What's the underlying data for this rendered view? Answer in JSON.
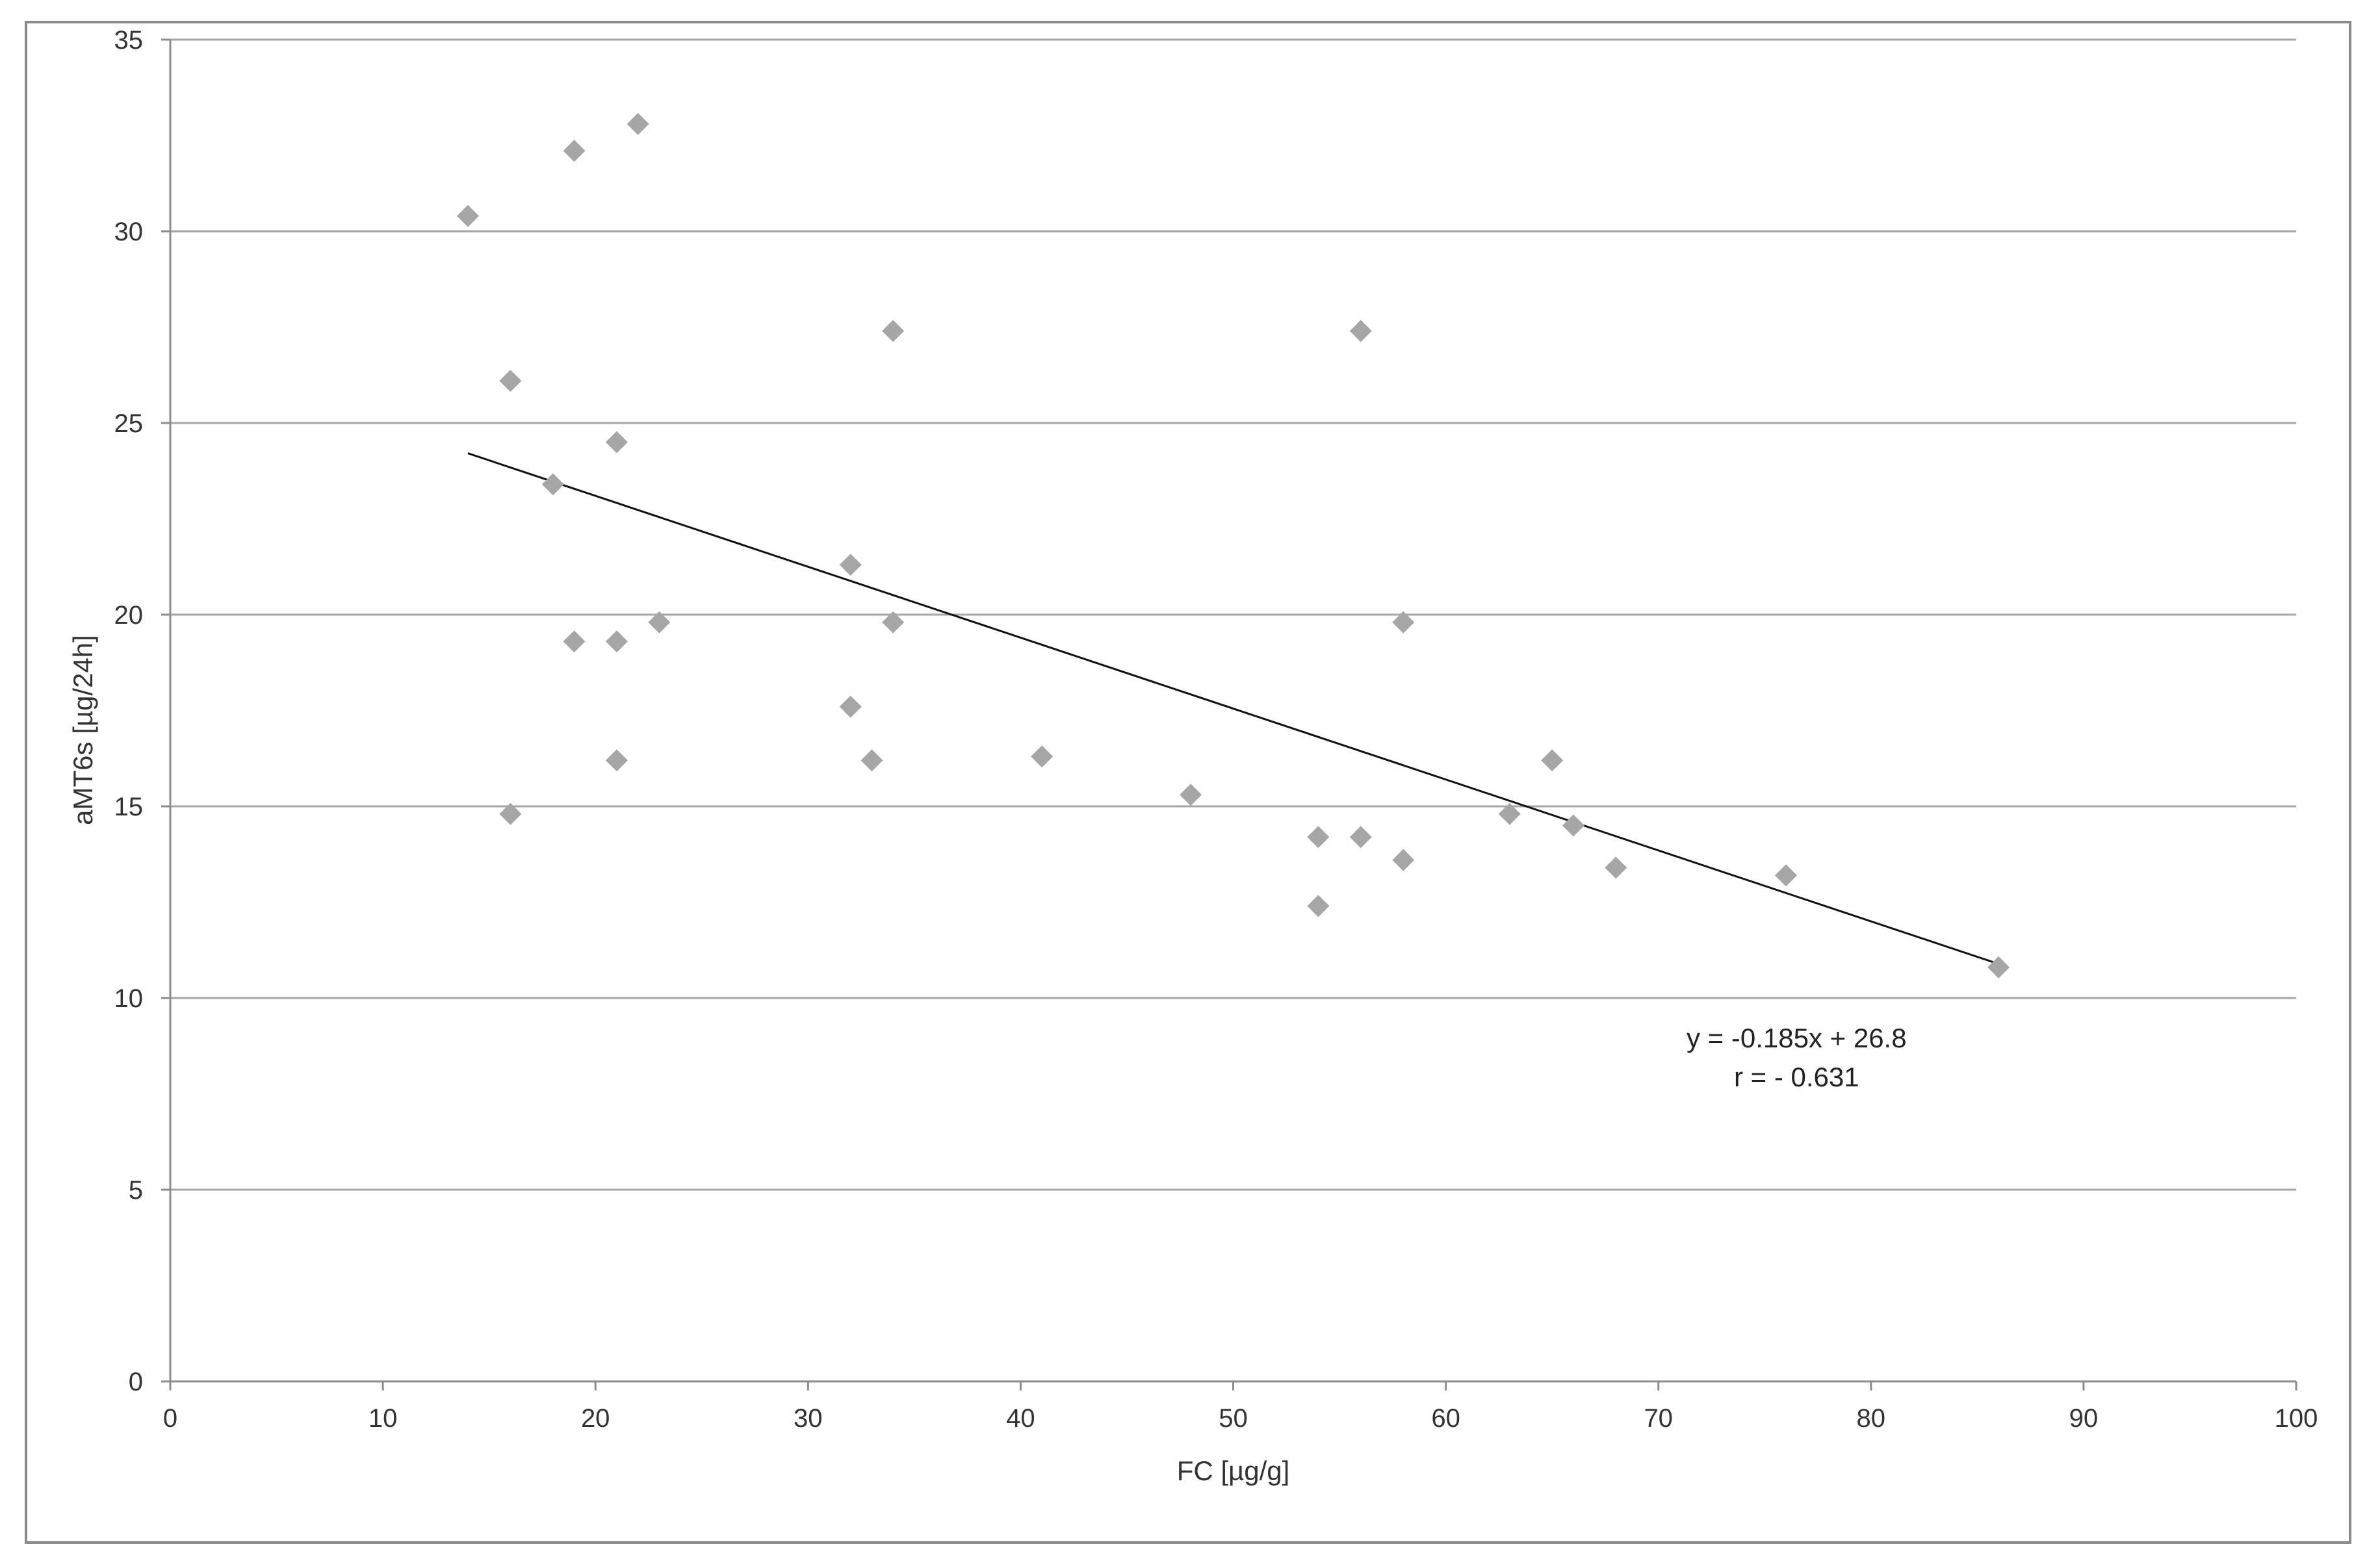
{
  "chart_data": {
    "type": "scatter",
    "title": "",
    "xlabel": "FC [µg/g]",
    "ylabel": "aMT6s [µg/24h]",
    "xlim": [
      0,
      100
    ],
    "ylim": [
      0,
      35
    ],
    "xticks": [
      0,
      10,
      20,
      30,
      40,
      50,
      60,
      70,
      80,
      90,
      100
    ],
    "yticks": [
      0,
      5,
      10,
      15,
      20,
      25,
      30,
      35
    ],
    "grid": "horizontal",
    "legend": "none",
    "marker_color": "#a6a6a6",
    "trendline_color": "#111111",
    "series": [
      {
        "points": [
          {
            "x": 14,
            "y": 30.4
          },
          {
            "x": 16,
            "y": 26.1
          },
          {
            "x": 16,
            "y": 14.8
          },
          {
            "x": 18,
            "y": 23.4
          },
          {
            "x": 19,
            "y": 32.1
          },
          {
            "x": 19,
            "y": 19.3
          },
          {
            "x": 21,
            "y": 24.5
          },
          {
            "x": 21,
            "y": 19.3
          },
          {
            "x": 21,
            "y": 16.2
          },
          {
            "x": 22,
            "y": 32.8
          },
          {
            "x": 23,
            "y": 19.8
          },
          {
            "x": 32,
            "y": 21.3
          },
          {
            "x": 32,
            "y": 17.6
          },
          {
            "x": 33,
            "y": 16.2
          },
          {
            "x": 34,
            "y": 27.4
          },
          {
            "x": 34,
            "y": 19.8
          },
          {
            "x": 41,
            "y": 16.3
          },
          {
            "x": 48,
            "y": 15.3
          },
          {
            "x": 54,
            "y": 14.2
          },
          {
            "x": 54,
            "y": 12.4
          },
          {
            "x": 56,
            "y": 27.4
          },
          {
            "x": 56,
            "y": 14.2
          },
          {
            "x": 58,
            "y": 19.8
          },
          {
            "x": 58,
            "y": 13.6
          },
          {
            "x": 63,
            "y": 14.8
          },
          {
            "x": 65,
            "y": 16.2
          },
          {
            "x": 66,
            "y": 14.5
          },
          {
            "x": 68,
            "y": 13.4
          },
          {
            "x": 76,
            "y": 13.2
          },
          {
            "x": 86,
            "y": 10.8
          }
        ]
      }
    ],
    "trendline": {
      "slope": -0.185,
      "intercept": 26.8,
      "x_start": 14,
      "x_end": 86
    },
    "annotations": [
      "y = -0.185x + 26.8",
      "r = - 0.631"
    ]
  }
}
